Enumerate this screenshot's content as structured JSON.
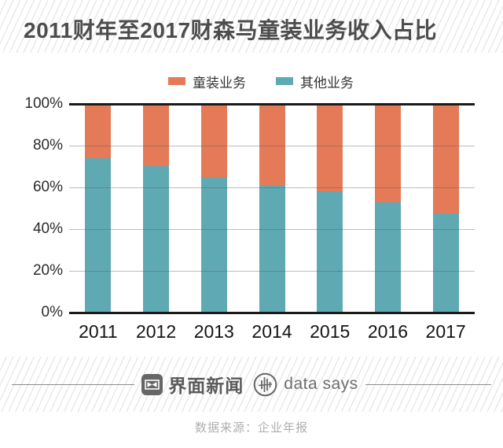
{
  "header": {
    "title": "2011财年至2017财森马童装业务收入占比"
  },
  "legend": {
    "items": [
      {
        "label": "童装业务",
        "color": "#e47a58"
      },
      {
        "label": "其他业务",
        "color": "#5fa9b3"
      }
    ]
  },
  "chart_data": {
    "type": "bar",
    "stacked": true,
    "title": "2011财年至2017财森马童装业务收入占比",
    "categories": [
      "2011",
      "2012",
      "2013",
      "2014",
      "2015",
      "2016",
      "2017"
    ],
    "series": [
      {
        "name": "童装业务",
        "color": "#e47a58",
        "values": [
          26.2,
          29.8,
          35.1,
          39.2,
          42.0,
          47.0,
          52.6
        ]
      },
      {
        "name": "其他业务",
        "color": "#5fa9b3",
        "values": [
          73.8,
          70.2,
          64.9,
          60.8,
          58.0,
          53.0,
          47.4
        ]
      }
    ],
    "xlabel": "",
    "ylabel": "",
    "ylim": [
      0,
      100
    ],
    "yticks": [
      "0%",
      "20%",
      "40%",
      "60%",
      "80%",
      "100%"
    ],
    "grid": true,
    "legend_position": "top"
  },
  "footer": {
    "brand1": "界面新闻",
    "brand2": "data says",
    "icons": {
      "brand1_icon": "jiemian-logo",
      "brand2_icon": "data-says-pulse-logo"
    }
  },
  "source": {
    "text": "数据来源：企业年报"
  },
  "colors": {
    "children_business": "#e47a58",
    "other_business": "#5fa9b3",
    "axis": "#1a1a1a",
    "title_text": "#4d4d4d",
    "source_text": "#aeaeae"
  }
}
